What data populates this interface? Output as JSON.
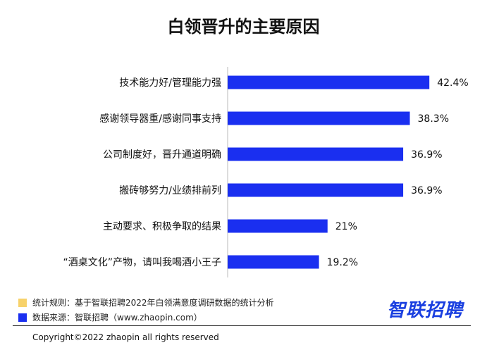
{
  "chart_data": {
    "type": "bar",
    "orientation": "horizontal",
    "title": "白领晋升的主要原因",
    "categories": [
      "技术能力好/管理能力强",
      "感谢领导器重/感谢同事支持",
      "公司制度好，晋升通道明确",
      "搬砖够努力/业绩排前列",
      "主动要求、积极争取的结果",
      "“酒桌文化”产物，请叫我喝酒小王子"
    ],
    "values": [
      42.4,
      38.3,
      36.9,
      36.9,
      21,
      19.2
    ],
    "value_labels": [
      "42.4%",
      "38.3%",
      "36.9%",
      "36.9%",
      "21%",
      "19.2%"
    ],
    "xlim": [
      0,
      50
    ],
    "grid": false,
    "bar_color": "#1a2ff0"
  },
  "notes": {
    "rule": "统计规则：基于智联招聘2022年白领满意度调研数据的统计分析",
    "source": "数据来源：智联招聘（www.zhaopin.com）",
    "rule_color": "#f7d26b",
    "source_color": "#1a2ff0"
  },
  "logo": "智联招聘",
  "copyright": "Copyright©2022 zhaopin all rights reserved"
}
